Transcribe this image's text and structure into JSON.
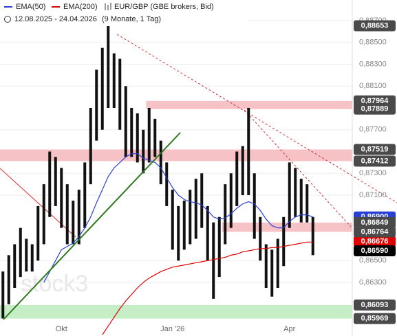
{
  "header": {
    "legend": [
      {
        "name": "EMA(50)",
        "color": "#2a3fd6"
      },
      {
        "name": "EMA(200)",
        "color": "#e00000"
      }
    ],
    "instrument": "EUR/GBP (GBE brokers, Bid)",
    "range": "12.08.2025 - 24.04.2026",
    "span": "(9 Monate, 1 Tag)",
    "watermark": "stock3"
  },
  "chart_data": {
    "type": "range",
    "grid": true,
    "categories": [
      null,
      null,
      null,
      null,
      null,
      null,
      null,
      null,
      null,
      null,
      "Okt",
      null,
      null,
      null,
      null,
      null,
      null,
      null,
      null,
      null,
      null,
      null,
      null,
      null,
      null,
      null,
      null,
      null,
      null,
      "Jan '26",
      null,
      null,
      null,
      null,
      null,
      null,
      null,
      null,
      null,
      null,
      null,
      null,
      null,
      null,
      null,
      null,
      null,
      null,
      null,
      "Apr",
      null,
      null,
      null,
      null
    ],
    "ylim": [
      0.85809,
      0.88763
    ],
    "yticks": [
      {
        "value": 0.887,
        "label": "0,88700"
      },
      {
        "value": 0.885,
        "label": "0,88500"
      },
      {
        "value": 0.883,
        "label": "0,88300"
      },
      {
        "value": 0.881,
        "label": "0,88100"
      },
      {
        "value": 0.877,
        "label": "0,87700"
      },
      {
        "value": 0.873,
        "label": "0,87300"
      },
      {
        "value": 0.871,
        "label": "0,87100"
      },
      {
        "value": 0.865,
        "label": "0,86500"
      },
      {
        "value": 0.863,
        "label": "0,86300"
      }
    ],
    "series": [
      {
        "name": "EUR/GBP",
        "color": "#111111",
        "high": [
          0.864,
          0.8655,
          0.8665,
          0.868,
          0.867,
          0.8665,
          0.87,
          0.872,
          0.875,
          0.8745,
          0.8735,
          0.872,
          0.8705,
          0.8715,
          0.874,
          0.879,
          0.8825,
          0.8845,
          0.8865,
          0.884,
          0.8835,
          0.881,
          0.879,
          0.8785,
          0.877,
          0.879,
          0.878,
          0.876,
          0.874,
          0.8715,
          0.87,
          0.8705,
          0.8715,
          0.8725,
          0.873,
          0.87,
          0.8685,
          0.869,
          0.872,
          0.873,
          0.875,
          0.8755,
          0.879,
          0.873,
          0.869,
          0.8665,
          0.866,
          0.867,
          0.869,
          0.874,
          0.8735,
          0.8725,
          0.872,
          0.869
        ],
        "low": [
          0.8597,
          0.861,
          0.8625,
          0.8635,
          0.864,
          0.864,
          0.865,
          0.8665,
          0.869,
          0.87,
          0.868,
          0.8665,
          0.8665,
          0.8665,
          0.868,
          0.872,
          0.876,
          0.877,
          0.879,
          0.879,
          0.877,
          0.8745,
          0.8745,
          0.874,
          0.873,
          0.874,
          0.8745,
          0.872,
          0.87,
          0.866,
          0.865,
          0.866,
          0.8665,
          0.867,
          0.868,
          0.865,
          0.8615,
          0.8635,
          0.8665,
          0.868,
          0.87,
          0.871,
          0.871,
          0.867,
          0.865,
          0.8625,
          0.8617,
          0.8625,
          0.8645,
          0.868,
          0.869,
          0.8685,
          0.8685,
          0.8655
        ]
      },
      {
        "name": "EMA(50)",
        "color": "#2a3fd6",
        "values": [
          null,
          null,
          null,
          null,
          null,
          null,
          null,
          0.863,
          0.864,
          0.865,
          0.866,
          0.8663,
          0.8666,
          0.8672,
          0.868,
          0.869,
          0.8703,
          0.8715,
          0.8727,
          0.8735,
          0.874,
          0.8745,
          0.8748,
          0.8748,
          0.8744,
          0.8742,
          0.874,
          0.8735,
          0.8726,
          0.8717,
          0.871,
          0.8706,
          0.8704,
          0.8703,
          0.8701,
          0.8696,
          0.869,
          0.8688,
          0.8689,
          0.8693,
          0.8698,
          0.8702,
          0.8704,
          0.8702,
          0.8696,
          0.8688,
          0.8682,
          0.868,
          0.868,
          0.8686,
          0.869,
          0.8692,
          0.8692,
          0.869
        ]
      },
      {
        "name": "EMA(200)",
        "color": "#e00000",
        "values": [
          null,
          null,
          null,
          null,
          null,
          null,
          null,
          null,
          null,
          null,
          null,
          null,
          null,
          null,
          null,
          null,
          null,
          0.8582,
          0.859,
          0.8598,
          0.8606,
          0.8613,
          0.8619,
          0.8625,
          0.863,
          0.8634,
          0.8637,
          0.864,
          0.8642,
          0.8644,
          0.8645,
          0.8646,
          0.8647,
          0.8648,
          0.8649,
          0.865,
          0.8651,
          0.8652,
          0.8653,
          0.8655,
          0.8656,
          0.8658,
          0.8659,
          0.866,
          0.8661,
          0.8661,
          0.8662,
          0.8662,
          0.8663,
          0.8664,
          0.8665,
          0.8666,
          0.8667,
          0.8667
        ]
      }
    ],
    "zones": [
      {
        "low": 0.87889,
        "high": 0.87964,
        "start": 25,
        "color": "#f7c2c6"
      },
      {
        "low": 0.87412,
        "high": 0.87519,
        "start": 0,
        "color": "#f7c2c6"
      },
      {
        "low": 0.86764,
        "high": 0.86849,
        "start": 38,
        "color": "#f7c2c6"
      },
      {
        "low": 0.85969,
        "high": 0.86093,
        "start": 0,
        "color": "#c6eec6"
      }
    ],
    "price_labels": [
      {
        "value": 0.869,
        "label": "0,86900",
        "color": "#2a3fd6"
      },
      {
        "value": 0.86676,
        "label": "0,86676",
        "color": "#e00000"
      },
      {
        "value": 0.88653,
        "label": "0,88653",
        "color": "#4a4a4a"
      },
      {
        "value": 0.87964,
        "label": "0,87964",
        "color": "#4a4a4a"
      },
      {
        "value": 0.87889,
        "label": "0,87889",
        "color": "#4a4a4a"
      },
      {
        "value": 0.87519,
        "label": "0,87519",
        "color": "#4a4a4a"
      },
      {
        "value": 0.87412,
        "label": "0,87412",
        "color": "#4a4a4a"
      },
      {
        "value": 0.86849,
        "label": "0,86849",
        "color": "#4a4a4a"
      },
      {
        "value": 0.86764,
        "label": "0,86764",
        "color": "#4a4a4a"
      },
      {
        "value": 0.8659,
        "label": "0,86590",
        "color": "#000000"
      },
      {
        "value": 0.86093,
        "label": "0,86093",
        "color": "#4a4a4a"
      },
      {
        "value": 0.85969,
        "label": "0,85969",
        "color": "#4a4a4a"
      }
    ]
  }
}
